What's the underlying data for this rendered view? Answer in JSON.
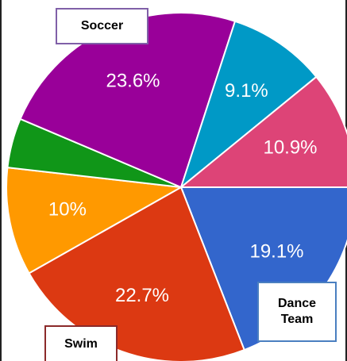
{
  "chart_data": {
    "type": "pie",
    "title": "",
    "start_angle_deg": 0,
    "direction": "counterclockwise",
    "slices": [
      {
        "name": "Dance Team",
        "value": 19.1,
        "label": "19.1%",
        "color": "#3366cc",
        "show_label": true
      },
      {
        "name": "Swim",
        "value": 22.7,
        "label": "22.7%",
        "color": "#dc3912",
        "show_label": true
      },
      {
        "name": "",
        "value": 10.0,
        "label": "10%",
        "color": "#ff9900",
        "show_label": true
      },
      {
        "name": "",
        "value": 4.6,
        "label": "",
        "color": "#109618",
        "show_label": false
      },
      {
        "name": "Soccer",
        "value": 23.6,
        "label": "23.6%",
        "color": "#990099",
        "show_label": true
      },
      {
        "name": "",
        "value": 9.1,
        "label": "9.1%",
        "color": "#0099c6",
        "show_label": true
      },
      {
        "name": "",
        "value": 10.9,
        "label": "10.9%",
        "color": "#dd4477",
        "show_label": true
      }
    ],
    "callouts": [
      {
        "id": "soccer",
        "text": "Soccer",
        "border_color": "#8060a8"
      },
      {
        "id": "dance",
        "text": "Dance\nTeam",
        "border_color": "#4a7fc0"
      },
      {
        "id": "swim",
        "text": "Swim",
        "border_color": "#8b2a2a"
      }
    ]
  }
}
